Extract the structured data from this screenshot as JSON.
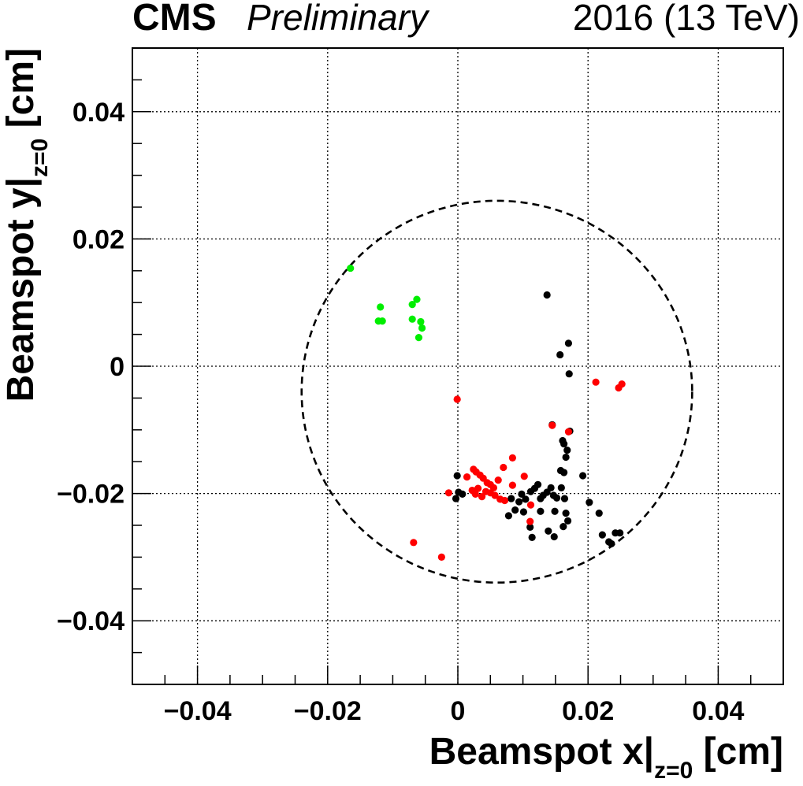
{
  "header": {
    "experiment": "CMS",
    "status": "Preliminary",
    "run_label": "2016 (13 TeV)"
  },
  "chart_data": {
    "type": "scatter",
    "xlabel": "Beamspot x|",
    "xlabel_sub": "z=0",
    "xlabel_unit": " [cm]",
    "ylabel": "Beamspot y|",
    "ylabel_sub": "z=0",
    "ylabel_unit": " [cm]",
    "xlim": [
      -0.05,
      0.05
    ],
    "ylim": [
      -0.05,
      0.05
    ],
    "grid": true,
    "x_ticks": [
      -0.04,
      -0.02,
      0,
      0.02,
      0.04
    ],
    "x_tick_labels": [
      "−0.04",
      "−0.02",
      "0",
      "0.02",
      "0.04"
    ],
    "y_ticks": [
      -0.04,
      -0.02,
      0,
      0.02,
      0.04
    ],
    "y_tick_labels": [
      "−0.04",
      "−0.02",
      "0",
      "0.02",
      "0.04"
    ],
    "circle": {
      "cx": 0.006,
      "cy": -0.004,
      "r": 0.03,
      "style": "dashed",
      "color": "#000000"
    },
    "series": [
      {
        "color": "#000000",
        "points": [
          [
            -0.0003,
            -0.0208
          ],
          [
            0.0001,
            -0.0198
          ],
          [
            -0.0001,
            -0.0172
          ],
          [
            0.0007,
            -0.0201
          ],
          [
            0.0082,
            -0.0208
          ],
          [
            0.0088,
            -0.0226
          ],
          [
            0.0094,
            -0.0213
          ],
          [
            0.0098,
            -0.0201
          ],
          [
            0.0104,
            -0.0209
          ],
          [
            0.0112,
            -0.0197
          ],
          [
            0.0118,
            -0.0192
          ],
          [
            0.0123,
            -0.0186
          ],
          [
            0.0127,
            -0.0208
          ],
          [
            0.0131,
            -0.0203
          ],
          [
            0.0137,
            -0.0198
          ],
          [
            0.0143,
            -0.0191
          ],
          [
            0.0147,
            -0.0203
          ],
          [
            0.0152,
            -0.0207
          ],
          [
            0.0159,
            -0.0191
          ],
          [
            0.0164,
            -0.0208
          ],
          [
            0.0078,
            -0.0235
          ],
          [
            0.0101,
            -0.0229
          ],
          [
            0.0127,
            -0.0228
          ],
          [
            0.0149,
            -0.0228
          ],
          [
            0.0166,
            -0.0231
          ],
          [
            0.0169,
            -0.0243
          ],
          [
            0.0162,
            -0.0252
          ],
          [
            0.0111,
            -0.0253
          ],
          [
            0.0139,
            -0.0259
          ],
          [
            0.0148,
            -0.0268
          ],
          [
            0.0114,
            -0.0269
          ],
          [
            0.0158,
            -0.0164
          ],
          [
            0.0163,
            -0.0167
          ],
          [
            0.0166,
            -0.0143
          ],
          [
            0.0168,
            -0.0132
          ],
          [
            0.0163,
            -0.0122
          ],
          [
            0.0161,
            -0.0117
          ],
          [
            0.0192,
            -0.0172
          ],
          [
            0.0202,
            -0.0214
          ],
          [
            0.0217,
            -0.0231
          ],
          [
            0.0222,
            -0.0265
          ],
          [
            0.0232,
            -0.0276
          ],
          [
            0.0236,
            -0.0279
          ],
          [
            0.0242,
            -0.0262
          ],
          [
            0.0249,
            -0.0262
          ],
          [
            0.0137,
            0.0112
          ],
          [
            0.017,
            0.0036
          ],
          [
            0.0157,
            0.0018
          ],
          [
            0.0171,
            -0.0012
          ],
          [
            0.0172,
            -0.0102
          ],
          [
            0.0145,
            -0.0092
          ]
        ]
      },
      {
        "color": "#ff0000",
        "points": [
          [
            -0.0001,
            -0.0052
          ],
          [
            0.0145,
            -0.0093
          ],
          [
            0.017,
            -0.0103
          ],
          [
            0.0212,
            -0.0025
          ],
          [
            0.0247,
            -0.0034
          ],
          [
            0.0252,
            -0.0028
          ],
          [
            0.0014,
            -0.0174
          ],
          [
            0.0024,
            -0.0162
          ],
          [
            0.0028,
            -0.0166
          ],
          [
            0.0034,
            -0.0171
          ],
          [
            0.0039,
            -0.0176
          ],
          [
            0.0045,
            -0.0183
          ],
          [
            0.005,
            -0.0186
          ],
          [
            0.0055,
            -0.0191
          ],
          [
            0.0062,
            -0.0179
          ],
          [
            0.007,
            -0.0159
          ],
          [
            0.0084,
            -0.0144
          ],
          [
            0.0022,
            -0.0195
          ],
          [
            0.0027,
            -0.0201
          ],
          [
            0.0031,
            -0.0192
          ],
          [
            0.0037,
            -0.0205
          ],
          [
            0.0043,
            -0.0197
          ],
          [
            0.005,
            -0.0199
          ],
          [
            0.0057,
            -0.0203
          ],
          [
            0.0065,
            -0.0209
          ],
          [
            0.0072,
            -0.0211
          ],
          [
            0.0084,
            -0.0187
          ],
          [
            0.0102,
            -0.0173
          ],
          [
            0.0112,
            -0.0218
          ],
          [
            0.0111,
            -0.0244
          ],
          [
            -0.0014,
            -0.0199
          ],
          [
            -0.0068,
            -0.0277
          ],
          [
            -0.0025,
            -0.03
          ]
        ]
      },
      {
        "color": "#00ee00",
        "points": [
          [
            -0.0165,
            0.0154
          ],
          [
            -0.0119,
            0.0093
          ],
          [
            -0.0122,
            0.0071
          ],
          [
            -0.0116,
            0.0071
          ],
          [
            -0.007,
            0.0097
          ],
          [
            -0.0063,
            0.0105
          ],
          [
            -0.007,
            0.0074
          ],
          [
            -0.0057,
            0.007
          ],
          [
            -0.0055,
            0.006
          ],
          [
            -0.006,
            0.0045
          ]
        ]
      }
    ]
  }
}
